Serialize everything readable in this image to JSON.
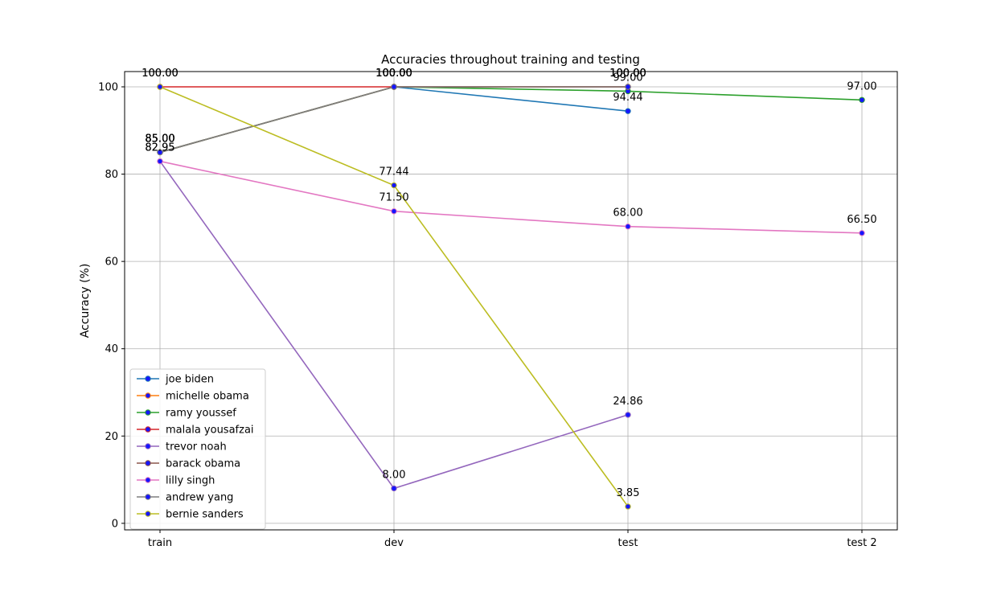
{
  "chart_data": {
    "type": "line",
    "title": "Accuracies throughout training and testing",
    "xlabel": "",
    "ylabel": "Accuracy (%)",
    "categories": [
      "train",
      "dev",
      "test",
      "test 2"
    ],
    "ylim": [
      -1.5,
      103.5
    ],
    "yticks": [
      0,
      20,
      40,
      60,
      80,
      100
    ],
    "grid": true,
    "legend_position": "lower-left",
    "series": [
      {
        "name": "joe biden",
        "color": "#1f77b4",
        "values": [
          85.0,
          100.0,
          94.44,
          null
        ],
        "labels": [
          "85.00",
          "100.00",
          "94.44",
          null
        ]
      },
      {
        "name": "michelle obama",
        "color": "#ff7f0e",
        "values": [
          85.0,
          100.0,
          100.0,
          null
        ],
        "labels": [
          "85.00",
          "100.00",
          "100.00",
          null
        ]
      },
      {
        "name": "ramy youssef",
        "color": "#2ca02c",
        "values": [
          85.0,
          100.0,
          99.0,
          97.0
        ],
        "labels": [
          "85.00",
          "100.00",
          "99.00",
          "97.00"
        ]
      },
      {
        "name": "malala yousafzai",
        "color": "#d62728",
        "values": [
          100.0,
          100.0,
          100.0,
          null
        ],
        "labels": [
          "100.00",
          "100.00",
          "100.00",
          null
        ]
      },
      {
        "name": "trevor noah",
        "color": "#9467bd",
        "values": [
          82.95,
          8.0,
          24.86,
          null
        ],
        "labels": [
          "82.95",
          "8.00",
          "24.86",
          null
        ]
      },
      {
        "name": "barack obama",
        "color": "#8c564b",
        "values": [
          85.0,
          100.0,
          100.0,
          null
        ],
        "labels": [
          "85.00",
          "100.00",
          "100.00",
          null
        ]
      },
      {
        "name": "lilly singh",
        "color": "#e377c2",
        "values": [
          82.95,
          71.5,
          68.0,
          66.5
        ],
        "labels": [
          "82.95",
          "71.50",
          "68.00",
          "66.50"
        ]
      },
      {
        "name": "andrew yang",
        "color": "#7f7f7f",
        "values": [
          85.0,
          100.0,
          100.0,
          null
        ],
        "labels": [
          "85.00",
          "100.00",
          "100.00",
          null
        ]
      },
      {
        "name": "bernie sanders",
        "color": "#bcbd22",
        "values": [
          100.0,
          77.44,
          3.85,
          null
        ],
        "labels": [
          "100.00",
          "77.44",
          "3.85",
          null
        ]
      }
    ]
  }
}
